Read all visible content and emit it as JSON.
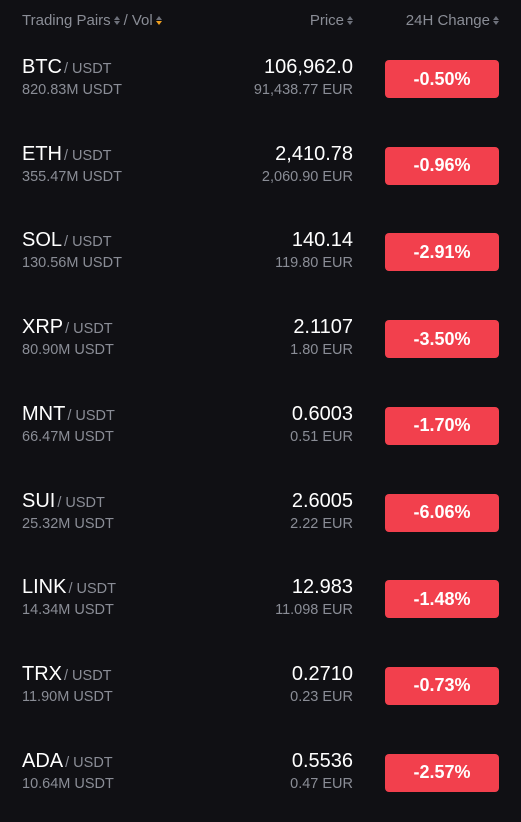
{
  "header": {
    "pairs_label": "Trading Pairs",
    "vol_label": "Vol",
    "price_label": "Price",
    "change_label": "24H Change"
  },
  "colors": {
    "down": "#f2404d",
    "sort_active": "#f0a020"
  },
  "rows": [
    {
      "base": "BTC",
      "quote": "/ USDT",
      "vol": "820.83M USDT",
      "price": "106,962.0",
      "fiat": "91,438.77 EUR",
      "change": "-0.50%"
    },
    {
      "base": "ETH",
      "quote": "/ USDT",
      "vol": "355.47M USDT",
      "price": "2,410.78",
      "fiat": "2,060.90 EUR",
      "change": "-0.96%"
    },
    {
      "base": "SOL",
      "quote": "/ USDT",
      "vol": "130.56M USDT",
      "price": "140.14",
      "fiat": "119.80 EUR",
      "change": "-2.91%"
    },
    {
      "base": "XRP",
      "quote": "/ USDT",
      "vol": "80.90M USDT",
      "price": "2.1107",
      "fiat": "1.80 EUR",
      "change": "-3.50%"
    },
    {
      "base": "MNT",
      "quote": "/ USDT",
      "vol": "66.47M USDT",
      "price": "0.6003",
      "fiat": "0.51 EUR",
      "change": "-1.70%"
    },
    {
      "base": "SUI",
      "quote": "/ USDT",
      "vol": "25.32M USDT",
      "price": "2.6005",
      "fiat": "2.22 EUR",
      "change": "-6.06%"
    },
    {
      "base": "LINK",
      "quote": "/ USDT",
      "vol": "14.34M USDT",
      "price": "12.983",
      "fiat": "11.098 EUR",
      "change": "-1.48%"
    },
    {
      "base": "TRX",
      "quote": "/ USDT",
      "vol": "11.90M USDT",
      "price": "0.2710",
      "fiat": "0.23 EUR",
      "change": "-0.73%"
    },
    {
      "base": "ADA",
      "quote": "/ USDT",
      "vol": "10.64M USDT",
      "price": "0.5536",
      "fiat": "0.47 EUR",
      "change": "-2.57%"
    }
  ]
}
